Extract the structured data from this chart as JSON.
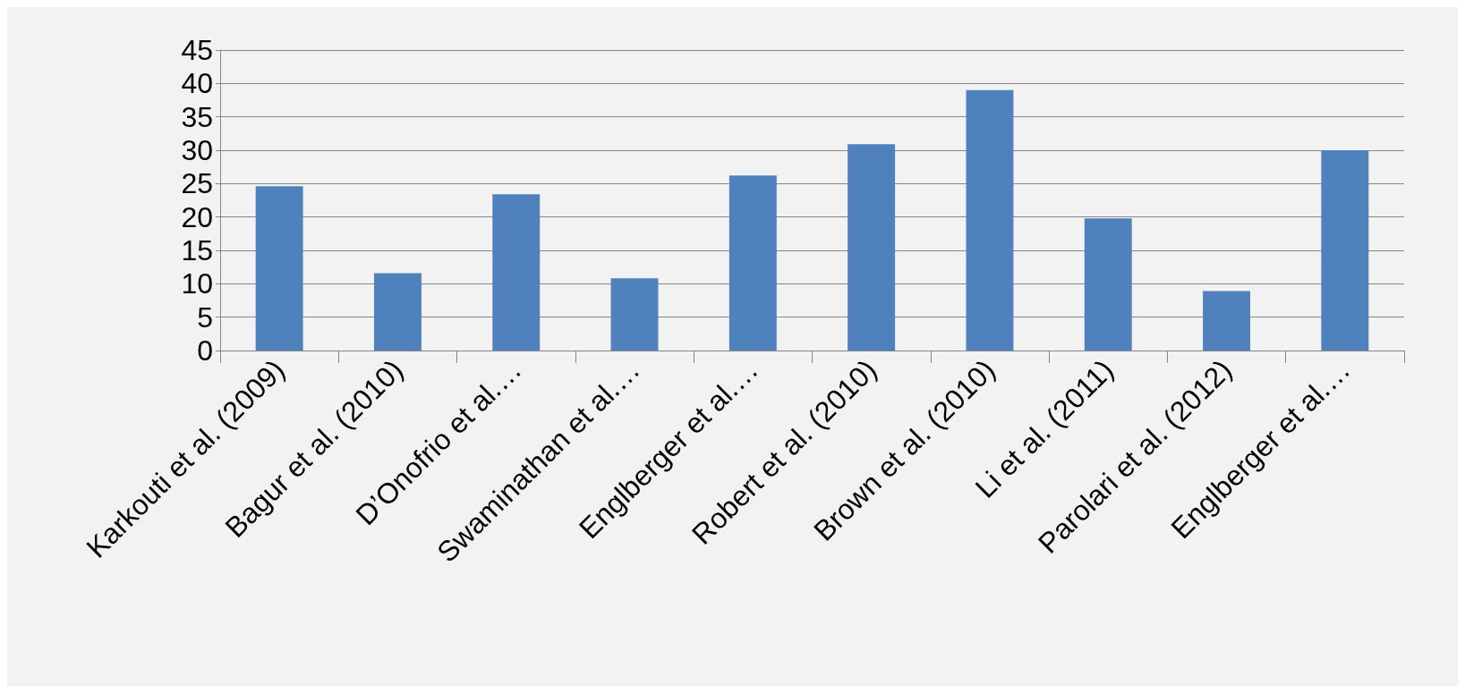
{
  "chart_data": {
    "type": "bar",
    "categories": [
      "Karkouti et al. (2009)",
      "Bagur et al. (2010)",
      "D’Onofrio et al.…",
      "Swaminathan et al.…",
      "Englberger et al.…",
      "Robert et al. (2010)",
      "Brown et al. (2010)",
      "Li et al. (2011)",
      "Parolari et al. (2012)",
      "Englberger et al.…"
    ],
    "values": [
      24.6,
      11.6,
      23.4,
      10.8,
      26.2,
      30.9,
      39.0,
      19.8,
      8.9,
      30.0
    ],
    "color": "#4f81bd",
    "ylim": [
      0,
      45
    ],
    "yticks": [
      0,
      5,
      10,
      15,
      20,
      25,
      30,
      35,
      40,
      45
    ],
    "grid": "y"
  }
}
